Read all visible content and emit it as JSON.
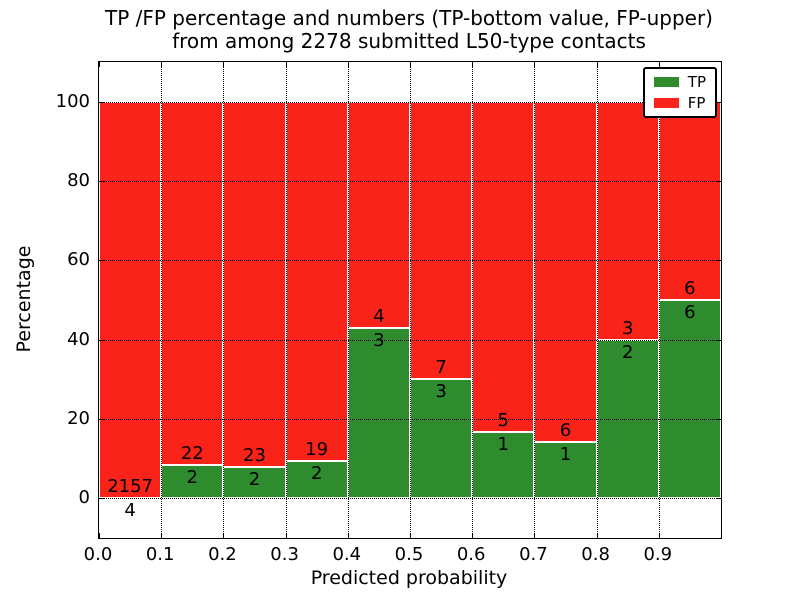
{
  "title": {
    "line1": "TP /FP percentage and numbers (TP-bottom value, FP-upper)",
    "line2": "from among 2278 submitted L50-type contacts"
  },
  "axes": {
    "xlabel": "Predicted probability",
    "ylabel": "Percentage",
    "x_tick_labels": [
      "0.0",
      "0.1",
      "0.2",
      "0.3",
      "0.4",
      "0.5",
      "0.6",
      "0.7",
      "0.8",
      "0.9"
    ],
    "y_tick_labels": [
      "0",
      "20",
      "40",
      "60",
      "80",
      "100"
    ]
  },
  "legend": {
    "items": [
      {
        "label": "TP",
        "color": "#2e8b2e"
      },
      {
        "label": "FP",
        "color": "#fa2319"
      }
    ]
  },
  "chart_data": {
    "type": "bar",
    "stacked": true,
    "normalized_to_percent": true,
    "title": "TP /FP percentage and numbers (TP-bottom value, FP-upper) from among 2278 submitted L50-type contacts",
    "xlabel": "Predicted probability",
    "ylabel": "Percentage",
    "total_contacts": 2278,
    "bin_edges": [
      0.0,
      0.1,
      0.2,
      0.3,
      0.4,
      0.5,
      0.6,
      0.7,
      0.8,
      0.9,
      1.0
    ],
    "series": [
      {
        "name": "TP",
        "color": "#2e8b2e",
        "counts": [
          4,
          2,
          2,
          2,
          3,
          3,
          1,
          1,
          2,
          6
        ]
      },
      {
        "name": "FP",
        "color": "#fa2319",
        "counts": [
          2157,
          22,
          23,
          19,
          4,
          7,
          5,
          6,
          3,
          6
        ]
      }
    ],
    "tp_percent": [
      0.19,
      8.33,
      8.0,
      9.52,
      42.86,
      30.0,
      16.67,
      14.29,
      40.0,
      50.0
    ],
    "ylim": [
      -10,
      110
    ],
    "xlim": [
      0,
      1
    ],
    "yticks": [
      0,
      20,
      40,
      60,
      80,
      100
    ],
    "xticks": [
      0,
      0.1,
      0.2,
      0.3,
      0.4,
      0.5,
      0.6,
      0.7,
      0.8,
      0.9
    ],
    "grid": "dotted",
    "legend_position": "upper right"
  }
}
